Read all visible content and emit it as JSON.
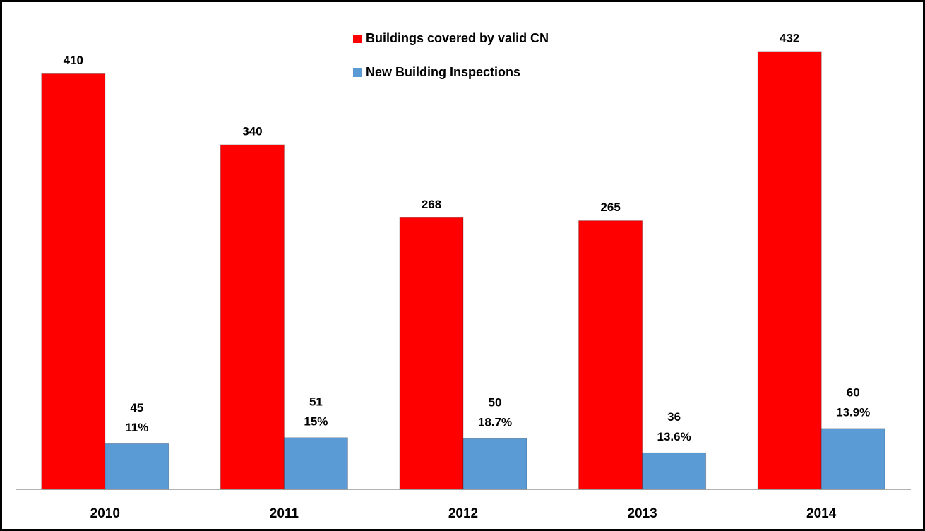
{
  "chart_data": {
    "type": "bar",
    "categories": [
      "2010",
      "2011",
      "2012",
      "2013",
      "2014"
    ],
    "series": [
      {
        "name": "Buildings covered by valid CN",
        "color": "#ff0000",
        "values": [
          410,
          340,
          268,
          265,
          432
        ]
      },
      {
        "name": "New Building Inspections",
        "color": "#5b9bd5",
        "values": [
          45,
          51,
          50,
          36,
          60
        ],
        "share_labels": [
          "11%",
          "15%",
          "18.7%",
          "13.6%",
          "13.9%"
        ]
      }
    ],
    "ylim": [
      0,
      480
    ],
    "legend": "top"
  }
}
